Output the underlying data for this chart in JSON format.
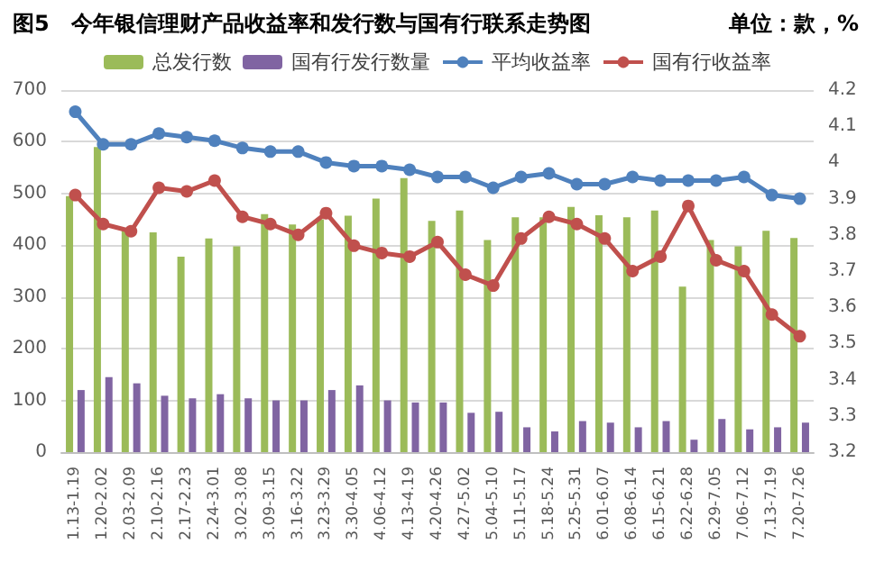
{
  "chart_data": {
    "type": "bar",
    "title": "图5　今年银信理财产品收益率和发行数与国有行联系走势图",
    "subtitle": "单位：款，%",
    "categories": [
      "1.13-1.19",
      "1.20-2.02",
      "2.03-2.09",
      "2.10-2.16",
      "2.17-2.23",
      "2.24-3.01",
      "3.02-3.08",
      "3.09-3.15",
      "3.16-3.22",
      "3.23-3.29",
      "3.30-4.05",
      "4.06-4.12",
      "4.13-4.19",
      "4.20-4.26",
      "4.27-5.02",
      "5.04-5.10",
      "5.11-5.17",
      "5.18-5.24",
      "5.25-5.31",
      "6.01-6.07",
      "6.08-6.14",
      "6.15-6.21",
      "6.22-6.28",
      "6.29-7.05",
      "7.06-7.12",
      "7.13-7.19",
      "7.20-7.26"
    ],
    "series": [
      {
        "name": "总发行数",
        "color": "#9bbb59",
        "values": [
          495,
          590,
          430,
          425,
          378,
          413,
          398,
          460,
          440,
          450,
          457,
          490,
          530,
          447,
          467,
          410,
          454,
          454,
          474,
          458,
          454,
          467,
          320,
          410,
          398,
          428,
          414
        ]
      },
      {
        "name": "国有行发行数量",
        "color": "#8064a2",
        "values": [
          120,
          145,
          133,
          109,
          104,
          112,
          104,
          100,
          100,
          120,
          129,
          100,
          96,
          96,
          76,
          78,
          48,
          40,
          60,
          57,
          48,
          60,
          24,
          64,
          44,
          48,
          57
        ]
      },
      {
        "name": "平均收益率",
        "type": "line",
        "axis": "y2",
        "color": "#4f81bd",
        "values": [
          4.14,
          4.05,
          4.05,
          4.08,
          4.07,
          4.06,
          4.04,
          4.03,
          4.03,
          4.0,
          3.99,
          3.99,
          3.98,
          3.96,
          3.96,
          3.93,
          3.96,
          3.97,
          3.94,
          3.94,
          3.96,
          3.95,
          3.95,
          3.95,
          3.96,
          3.91,
          3.9
        ]
      },
      {
        "name": "国有行收益率",
        "type": "line",
        "axis": "y2",
        "color": "#c0504d",
        "values": [
          3.91,
          3.83,
          3.81,
          3.93,
          3.92,
          3.95,
          3.85,
          3.83,
          3.8,
          3.86,
          3.77,
          3.75,
          3.74,
          3.78,
          3.69,
          3.66,
          3.79,
          3.85,
          3.83,
          3.79,
          3.7,
          3.74,
          3.88,
          3.73,
          3.7,
          3.58,
          3.52
        ]
      }
    ],
    "ylim": [
      0,
      700
    ],
    "yticks": [
      0,
      100,
      200,
      300,
      400,
      500,
      600,
      700
    ],
    "y2lim": [
      3.2,
      4.2
    ],
    "y2ticks": [
      3.2,
      3.3,
      3.4,
      3.5,
      3.6,
      3.7,
      3.8,
      3.9,
      4,
      4.1,
      4.2
    ],
    "grid": "y",
    "legend": "top",
    "marker": "circle",
    "line_style": "solid"
  }
}
